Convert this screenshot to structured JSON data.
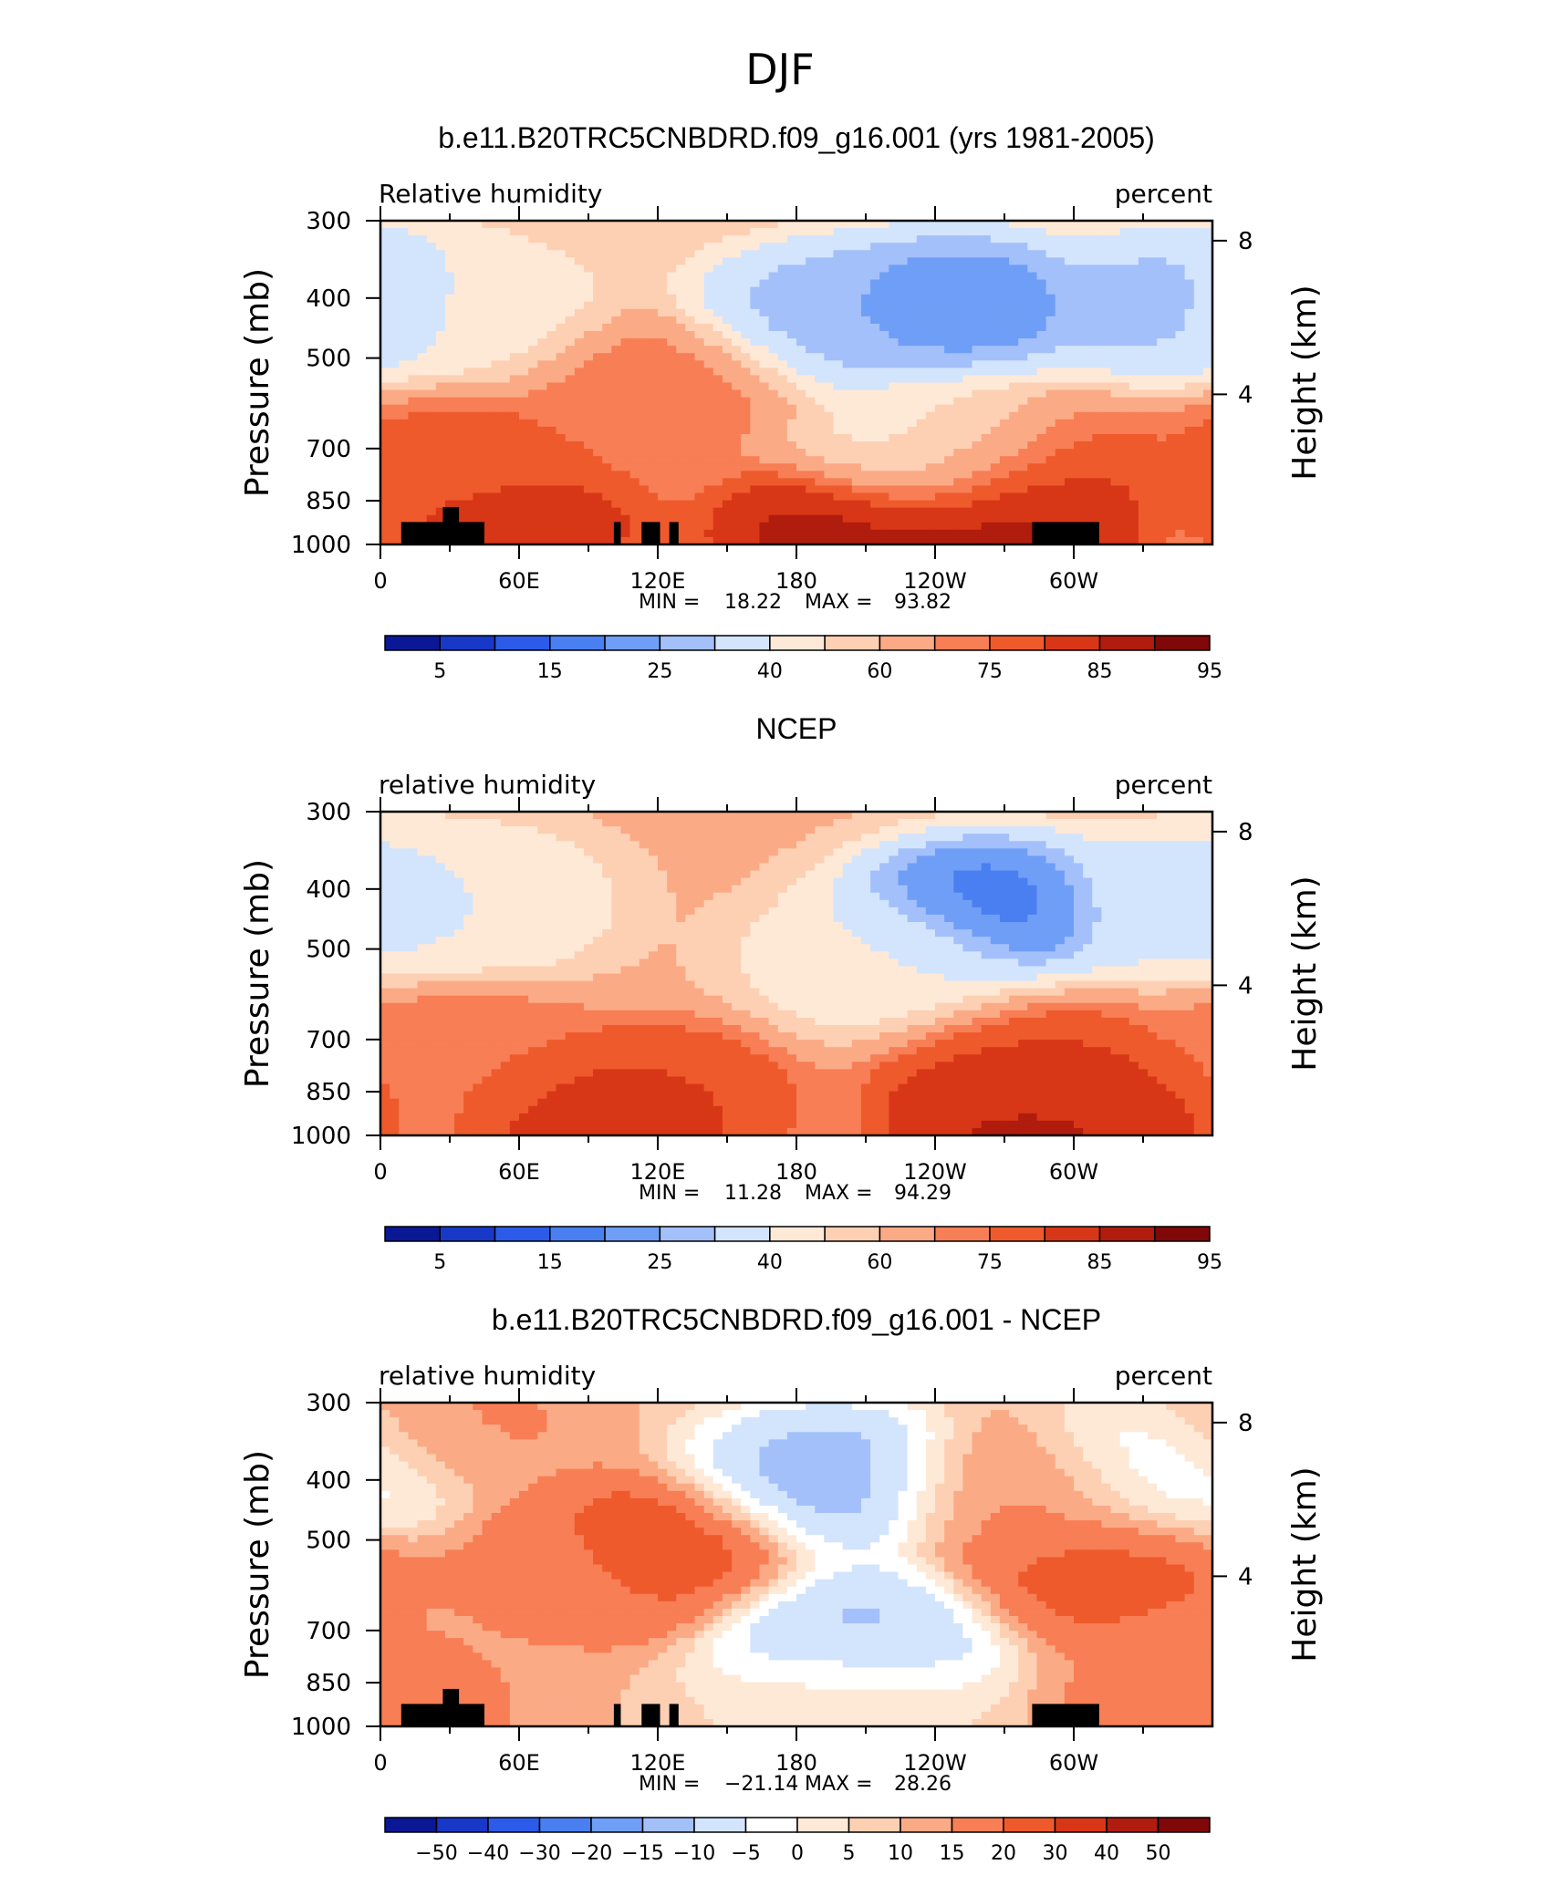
{
  "figure": {
    "title": "DJF"
  },
  "colors": {
    "abs": [
      "#0a1896",
      "#1838c8",
      "#2b5be8",
      "#4a7ff2",
      "#6f9ef7",
      "#a3c0fa",
      "#d3e4fd",
      "#fee9d7",
      "#fdd0b3",
      "#fbaa86",
      "#f77e55",
      "#ee5a2c",
      "#d83717",
      "#b01c0d",
      "#800808"
    ],
    "diff": [
      "#0a1896",
      "#1838c8",
      "#2b5be8",
      "#4a7ff2",
      "#6f9ef7",
      "#a3c0fa",
      "#d3e4fd",
      "#ffffff",
      "#fee9d7",
      "#fdd0b3",
      "#fbaa86",
      "#f77e55",
      "#ee5a2c",
      "#d83717",
      "#b01c0d",
      "#800808"
    ]
  },
  "panels": [
    {
      "title": "b.e11.B20TRC5CNBDRD.f09_g16.001 (yrs 1981-2005)",
      "left_label": "Relative  humidity",
      "right_label": "percent",
      "ylabel": "Pressure  (mb)",
      "y2label": "Height  (km)",
      "min_label": "MIN =",
      "min_value": "18.22",
      "max_label": "MAX =",
      "max_value": "93.82",
      "palette": "abs",
      "has_topography": true,
      "colorbar_labels": [
        "5",
        "15",
        "25",
        "40",
        "60",
        "75",
        "85",
        "95"
      ]
    },
    {
      "title": "NCEP",
      "left_label": "relative  humidity",
      "right_label": "percent",
      "ylabel": "Pressure  (mb)",
      "y2label": "Height  (km)",
      "min_label": "MIN =",
      "min_value": "11.28",
      "max_label": "MAX =",
      "max_value": "94.29",
      "palette": "abs",
      "has_topography": false,
      "colorbar_labels": [
        "5",
        "15",
        "25",
        "40",
        "60",
        "75",
        "85",
        "95"
      ]
    },
    {
      "title": "b.e11.B20TRC5CNBDRD.f09_g16.001 - NCEP",
      "left_label": "relative  humidity",
      "right_label": "percent",
      "ylabel": "Pressure  (mb)",
      "y2label": "Height  (km)",
      "min_label": "MIN =",
      "min_value": "−21.14",
      "max_label": "MAX =",
      "max_value": "28.26",
      "palette": "diff",
      "has_topography": true,
      "colorbar_labels": [
        "−50",
        "−40",
        "−30",
        "−20",
        "−15",
        "−10",
        "−5",
        "0",
        "5",
        "10",
        "15",
        "20",
        "30",
        "40",
        "50"
      ]
    }
  ],
  "chart_data": [
    {
      "type": "heatmap",
      "title": "b.e11.B20TRC5CNBDRD.f09_g16.001 (yrs 1981-2005)",
      "ylabel": "Pressure  (mb)",
      "y2label": "Height  (km)",
      "x_ticks": [
        "0",
        "60E",
        "120E",
        "180",
        "120W",
        "60W"
      ],
      "x_tick_values": [
        0,
        60,
        120,
        180,
        240,
        300
      ],
      "xlim": [
        0,
        360
      ],
      "y_ticks": [
        300,
        400,
        500,
        700,
        850,
        1000
      ],
      "ylim": [
        1000,
        300
      ],
      "y_scale": "log",
      "y2_ticks": [
        8,
        4
      ],
      "levels": [
        5,
        10,
        15,
        20,
        25,
        30,
        40,
        50,
        60,
        70,
        75,
        80,
        85,
        90,
        95
      ],
      "min": 18.22,
      "max": 93.82,
      "features": [
        {
          "lon": 195,
          "p": 430,
          "value": 25
        },
        {
          "lon": 250,
          "p": 410,
          "value": 20
        },
        {
          "lon": 350,
          "p": 410,
          "value": 25
        },
        {
          "lon": 38,
          "p": 420,
          "value": 45
        },
        {
          "lon": 240,
          "p": 700,
          "value": 45
        },
        {
          "lon": 120,
          "p": 560,
          "value": 75
        },
        {
          "lon": 32,
          "p": 720,
          "value": 78
        },
        {
          "lon": 280,
          "p": 760,
          "value": 80
        },
        {
          "lon": 200,
          "p": 950,
          "value": 88
        },
        {
          "lon": 60,
          "p": 940,
          "value": 84
        },
        {
          "lon": 270,
          "p": 900,
          "value": 90
        }
      ]
    },
    {
      "type": "heatmap",
      "title": "NCEP",
      "ylabel": "Pressure  (mb)",
      "y2label": "Height  (km)",
      "x_ticks": [
        "0",
        "60E",
        "120E",
        "180",
        "120W",
        "60W"
      ],
      "x_tick_values": [
        0,
        60,
        120,
        180,
        240,
        300
      ],
      "xlim": [
        0,
        360
      ],
      "y_ticks": [
        300,
        400,
        500,
        700,
        850,
        1000
      ],
      "ylim": [
        1000,
        300
      ],
      "y_scale": "log",
      "y2_ticks": [
        8,
        4
      ],
      "levels": [
        5,
        10,
        15,
        20,
        25,
        30,
        40,
        50,
        60,
        70,
        75,
        80,
        85,
        90,
        95
      ],
      "min": 11.28,
      "max": 94.29,
      "features": [
        {
          "lon": 262,
          "p": 430,
          "value": 15
        },
        {
          "lon": 35,
          "p": 420,
          "value": 40
        },
        {
          "lon": 350,
          "p": 420,
          "value": 35
        },
        {
          "lon": 220,
          "p": 520,
          "value": 42
        },
        {
          "lon": 30,
          "p": 740,
          "value": 75
        },
        {
          "lon": 280,
          "p": 780,
          "value": 80
        },
        {
          "lon": 120,
          "p": 870,
          "value": 80
        },
        {
          "lon": 100,
          "p": 960,
          "value": 84
        },
        {
          "lon": 280,
          "p": 920,
          "value": 88
        },
        {
          "lon": 300,
          "p": 970,
          "value": 85
        }
      ]
    },
    {
      "type": "heatmap",
      "title": "b.e11.B20TRC5CNBDRD.f09_g16.001 - NCEP",
      "ylabel": "Pressure  (mb)",
      "y2label": "Height  (km)",
      "x_ticks": [
        "0",
        "60E",
        "120E",
        "180",
        "120W",
        "60W"
      ],
      "x_tick_values": [
        0,
        60,
        120,
        180,
        240,
        300
      ],
      "xlim": [
        0,
        360
      ],
      "y_ticks": [
        300,
        400,
        500,
        700,
        850,
        1000
      ],
      "ylim": [
        1000,
        300
      ],
      "y_scale": "log",
      "y2_ticks": [
        8,
        4
      ],
      "levels": [
        -50,
        -40,
        -30,
        -20,
        -15,
        -10,
        -5,
        0,
        5,
        10,
        15,
        20,
        30,
        40,
        50
      ],
      "min": -21.14,
      "max": 28.26,
      "features": [
        {
          "lon": 195,
          "p": 400,
          "value": -13
        },
        {
          "lon": 205,
          "p": 720,
          "value": -12
        },
        {
          "lon": 340,
          "p": 380,
          "value": -5
        },
        {
          "lon": 120,
          "p": 520,
          "value": 24
        },
        {
          "lon": 90,
          "p": 560,
          "value": 18
        },
        {
          "lon": 310,
          "p": 560,
          "value": 22
        },
        {
          "lon": 280,
          "p": 420,
          "value": 16
        },
        {
          "lon": 30,
          "p": 330,
          "value": 16
        },
        {
          "lon": 20,
          "p": 880,
          "value": 15
        },
        {
          "lon": 355,
          "p": 920,
          "value": 18
        },
        {
          "lon": 200,
          "p": 920,
          "value": 4
        }
      ]
    }
  ]
}
